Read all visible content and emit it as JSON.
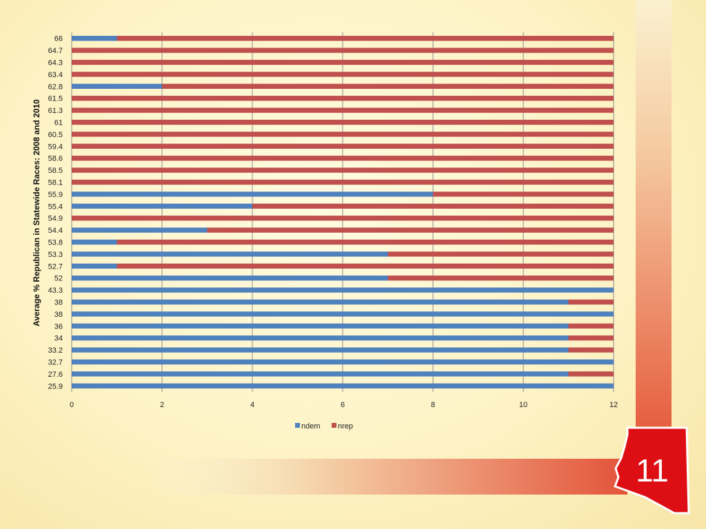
{
  "slide": {
    "page_number": "11",
    "colors": {
      "accent_red": "#dd0f14",
      "stripe_start": "#f9efc4",
      "stripe_end": "#e45a3c",
      "bar_dem": "#4f81bd",
      "bar_rep": "#c0504d"
    },
    "icons": [
      "arizona-map-shape"
    ]
  },
  "chart_data": {
    "type": "bar",
    "orientation": "horizontal",
    "stacked": true,
    "title": "",
    "xlabel": "",
    "ylabel": "Average % Republican in Statewide Races: 2008 and 2010",
    "xlim": [
      0,
      12
    ],
    "xticks": [
      0,
      2,
      4,
      6,
      8,
      10,
      12
    ],
    "grid": "vertical",
    "legend_position": "bottom",
    "categories": [
      "66",
      "64.7",
      "64.3",
      "63.4",
      "62.8",
      "61.5",
      "61.3",
      "61",
      "60.5",
      "59.4",
      "58.6",
      "58.5",
      "58.1",
      "55.9",
      "55.4",
      "54.9",
      "54.4",
      "53.8",
      "53.3",
      "52.7",
      "52",
      "43.3",
      "38",
      "38",
      "36",
      "34",
      "33.2",
      "32.7",
      "27.6",
      "25.9"
    ],
    "series": [
      {
        "name": "ndem",
        "color": "#4f81bd",
        "values": [
          1,
          0,
          0,
          0,
          2,
          0,
          0,
          0,
          0,
          0,
          0,
          0,
          0,
          8,
          4,
          0,
          3,
          1,
          7,
          1,
          7,
          12,
          11,
          12,
          11,
          11,
          11,
          12,
          11,
          12
        ]
      },
      {
        "name": "nrep",
        "color": "#c0504d",
        "values": [
          11,
          12,
          12,
          12,
          10,
          12,
          12,
          12,
          12,
          12,
          12,
          12,
          12,
          4,
          8,
          12,
          9,
          11,
          5,
          11,
          5,
          0,
          1,
          0,
          1,
          1,
          1,
          0,
          1,
          0
        ]
      }
    ]
  }
}
